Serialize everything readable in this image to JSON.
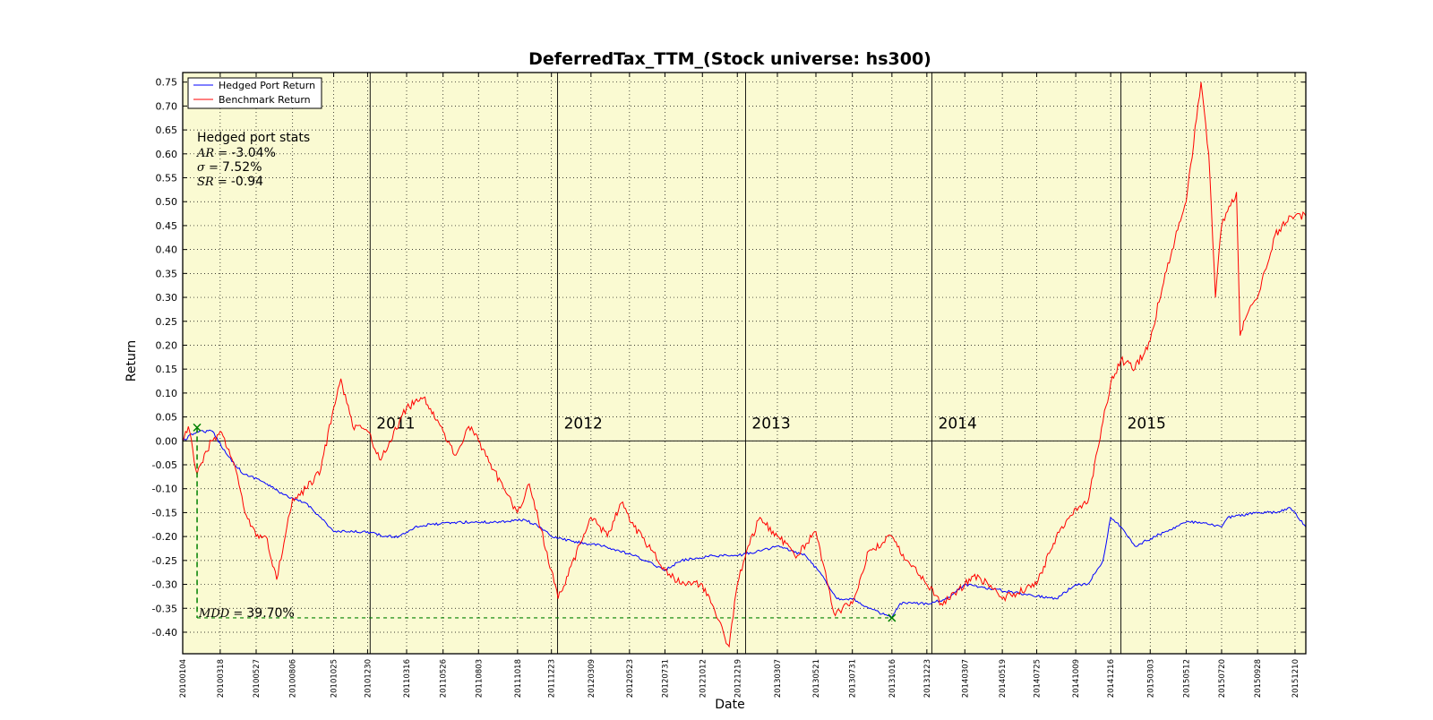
{
  "chart_data": {
    "type": "line",
    "title": "DeferredTax_TTM_(Stock universe: hs300)",
    "xlabel": "Date",
    "ylabel": "Return",
    "ylim": [
      -0.445,
      0.77
    ],
    "yticks": [
      0.75,
      0.7,
      0.65,
      0.6,
      0.55,
      0.5,
      0.45,
      0.4,
      0.35,
      0.3,
      0.25,
      0.2,
      0.15,
      0.1,
      0.05,
      0.0,
      -0.05,
      -0.1,
      -0.15,
      -0.2,
      -0.25,
      -0.3,
      -0.35,
      -0.4
    ],
    "ytick_labels": [
      "0.75",
      "0.70",
      "0.65",
      "0.60",
      "0.55",
      "0.50",
      "0.45",
      "0.40",
      "0.35",
      "0.30",
      "0.25",
      "0.20",
      "0.15",
      "0.10",
      "0.05",
      "0.00",
      "-0.05",
      "-0.10",
      "-0.15",
      "-0.20",
      "-0.25",
      "-0.30",
      "-0.35",
      "-0.40"
    ],
    "xticks": [
      "20100104",
      "20100318",
      "20100527",
      "20100806",
      "20101025",
      "20101230",
      "20110316",
      "20110526",
      "20110803",
      "20111018",
      "20111223",
      "20120309",
      "20120523",
      "20120731",
      "20121012",
      "20121219",
      "20130307",
      "20130521",
      "20130731",
      "20131016",
      "20131223",
      "20140307",
      "20140519",
      "20140725",
      "20141009",
      "20141216",
      "20150303",
      "20150512",
      "20150720",
      "20150928",
      "20151210"
    ],
    "year_lines": [
      {
        "label": "2011",
        "x": "20110104"
      },
      {
        "label": "2012",
        "x": "20120104"
      },
      {
        "label": "2013",
        "x": "20130104"
      },
      {
        "label": "2014",
        "x": "20140102"
      },
      {
        "label": "2015",
        "x": "20150105"
      }
    ],
    "grid": true,
    "background": "#fafad2",
    "legend_position": "top-left",
    "series": [
      {
        "name": "Hedged Port Return",
        "color": "#0000ff",
        "points": [
          [
            "20100104",
            0.0
          ],
          [
            "20100201",
            0.02
          ],
          [
            "20100303",
            0.02
          ],
          [
            "20100401",
            -0.03
          ],
          [
            "20100503",
            -0.07
          ],
          [
            "20100601",
            -0.08
          ],
          [
            "20100701",
            -0.1
          ],
          [
            "20100801",
            -0.12
          ],
          [
            "20100901",
            -0.13
          ],
          [
            "20100930",
            -0.16
          ],
          [
            "20101025",
            -0.19
          ],
          [
            "20101201",
            -0.19
          ],
          [
            "20101230",
            -0.19
          ],
          [
            "20110201",
            -0.2
          ],
          [
            "20110301",
            -0.2
          ],
          [
            "20110401",
            -0.18
          ],
          [
            "20110502",
            -0.175
          ],
          [
            "20110701",
            -0.17
          ],
          [
            "20110901",
            -0.17
          ],
          [
            "20111101",
            -0.165
          ],
          [
            "20111201",
            -0.18
          ],
          [
            "20111223",
            -0.2
          ],
          [
            "20120201",
            -0.21
          ],
          [
            "20120401",
            -0.22
          ],
          [
            "20120601",
            -0.24
          ],
          [
            "20120801",
            -0.27
          ],
          [
            "20120901",
            -0.25
          ],
          [
            "20121101",
            -0.24
          ],
          [
            "20121219",
            -0.24
          ],
          [
            "20130201",
            -0.23
          ],
          [
            "20130307",
            -0.22
          ],
          [
            "20130501",
            -0.24
          ],
          [
            "20130601",
            -0.28
          ],
          [
            "20130701",
            -0.33
          ],
          [
            "20130801",
            -0.33
          ],
          [
            "20130901",
            -0.35
          ],
          [
            "20131016",
            -0.37
          ],
          [
            "20131101",
            -0.34
          ],
          [
            "20131223",
            -0.34
          ],
          [
            "20140201",
            -0.33
          ],
          [
            "20140307",
            -0.3
          ],
          [
            "20140501",
            -0.31
          ],
          [
            "20140701",
            -0.32
          ],
          [
            "20140901",
            -0.33
          ],
          [
            "20141009",
            -0.3
          ],
          [
            "20141101",
            -0.3
          ],
          [
            "20141201",
            -0.25
          ],
          [
            "20141216",
            -0.16
          ],
          [
            "20150105",
            -0.18
          ],
          [
            "20150201",
            -0.22
          ],
          [
            "20150401",
            -0.19
          ],
          [
            "20150512",
            -0.17
          ],
          [
            "20150601",
            -0.17
          ],
          [
            "20150720",
            -0.18
          ],
          [
            "20150801",
            -0.16
          ],
          [
            "20150928",
            -0.15
          ],
          [
            "20151101",
            -0.15
          ],
          [
            "20151201",
            -0.14
          ],
          [
            "20151231",
            -0.18
          ]
        ]
      },
      {
        "name": "Benchmark Return",
        "color": "#ff0000",
        "points": [
          [
            "20100104",
            0.0
          ],
          [
            "20100115",
            0.03
          ],
          [
            "20100201",
            -0.07
          ],
          [
            "20100301",
            0.0
          ],
          [
            "20100318",
            0.02
          ],
          [
            "20100415",
            -0.05
          ],
          [
            "20100505",
            -0.15
          ],
          [
            "20100527",
            -0.2
          ],
          [
            "20100615",
            -0.2
          ],
          [
            "20100706",
            -0.29
          ],
          [
            "20100806",
            -0.12
          ],
          [
            "20100901",
            -0.1
          ],
          [
            "20100930",
            -0.06
          ],
          [
            "20101025",
            0.07
          ],
          [
            "20101108",
            0.13
          ],
          [
            "20101201",
            0.03
          ],
          [
            "20101230",
            0.02
          ],
          [
            "20110125",
            -0.04
          ],
          [
            "20110316",
            0.07
          ],
          [
            "20110418",
            0.09
          ],
          [
            "20110526",
            0.02
          ],
          [
            "20110620",
            -0.03
          ],
          [
            "20110715",
            0.03
          ],
          [
            "20110803",
            0.0
          ],
          [
            "20110901",
            -0.06
          ],
          [
            "20111018",
            -0.15
          ],
          [
            "20111110",
            -0.09
          ],
          [
            "20111223",
            -0.27
          ],
          [
            "20120105",
            -0.33
          ],
          [
            "20120309",
            -0.16
          ],
          [
            "20120410",
            -0.2
          ],
          [
            "20120507",
            -0.13
          ],
          [
            "20120601",
            -0.18
          ],
          [
            "20120731",
            -0.27
          ],
          [
            "20120901",
            -0.3
          ],
          [
            "20121012",
            -0.3
          ],
          [
            "20121203",
            -0.43
          ],
          [
            "20121219",
            -0.3
          ],
          [
            "20130106",
            -0.23
          ],
          [
            "20130201",
            -0.16
          ],
          [
            "20130307",
            -0.2
          ],
          [
            "20130415",
            -0.24
          ],
          [
            "20130521",
            -0.19
          ],
          [
            "20130625",
            -0.36
          ],
          [
            "20130731",
            -0.34
          ],
          [
            "20130901",
            -0.23
          ],
          [
            "20131016",
            -0.2
          ],
          [
            "20131115",
            -0.25
          ],
          [
            "20131223",
            -0.3
          ],
          [
            "20140120",
            -0.34
          ],
          [
            "20140307",
            -0.3
          ],
          [
            "20140401",
            -0.28
          ],
          [
            "20140519",
            -0.33
          ],
          [
            "20140725",
            -0.3
          ],
          [
            "20140901",
            -0.2
          ],
          [
            "20141009",
            -0.14
          ],
          [
            "20141101",
            -0.13
          ],
          [
            "20141201",
            0.04
          ],
          [
            "20141216",
            0.12
          ],
          [
            "20150105",
            0.17
          ],
          [
            "20150201",
            0.15
          ],
          [
            "20150303",
            0.21
          ],
          [
            "20150401",
            0.35
          ],
          [
            "20150512",
            0.5
          ],
          [
            "20150610",
            0.75
          ],
          [
            "20150625",
            0.6
          ],
          [
            "20150708",
            0.3
          ],
          [
            "20150720",
            0.45
          ],
          [
            "20150818",
            0.52
          ],
          [
            "20150825",
            0.22
          ],
          [
            "20150901",
            0.25
          ],
          [
            "20150928",
            0.3
          ],
          [
            "20151101",
            0.43
          ],
          [
            "20151201",
            0.47
          ],
          [
            "20151231",
            0.47
          ]
        ]
      }
    ],
    "stats_box": {
      "title": "Hedged port stats",
      "lines": [
        {
          "label": "AR =",
          "value": "-3.04%"
        },
        {
          "label": "σ =",
          "value": "7.52%"
        },
        {
          "label": "SR =",
          "value": "-0.94"
        }
      ]
    },
    "mdd": {
      "label": "MDD =",
      "value": "39.70%",
      "peak": {
        "x": "20100201",
        "y": 0.028
      },
      "trough": {
        "x": "20131016",
        "y": -0.37
      },
      "color": "#008000"
    }
  }
}
